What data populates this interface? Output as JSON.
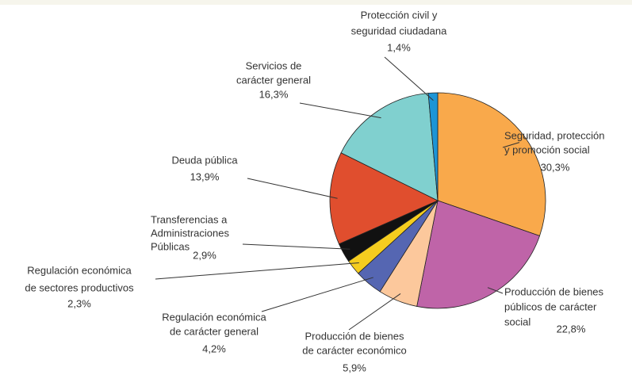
{
  "chart_data": {
    "type": "pie",
    "categories": [
      [
        "Seguridad, protección",
        "y promoción social"
      ],
      [
        "Producción de bienes",
        "públicos de carácter",
        "social"
      ],
      [
        "Producción de bienes",
        "de carácter económico"
      ],
      [
        "Regulación económica",
        "de carácter general"
      ],
      [
        "Regulación económica",
        "de sectores productivos"
      ],
      [
        "Transferencias a",
        "Administraciones",
        "Públicas"
      ],
      [
        "Deuda pública"
      ],
      [
        "Servicios de",
        "carácter general"
      ],
      [
        "Protección civil y",
        "seguridad ciudadana"
      ]
    ],
    "values": [
      30.3,
      22.8,
      5.9,
      4.2,
      2.3,
      2.9,
      13.9,
      16.3,
      1.4
    ],
    "value_labels": [
      "30,3%",
      "22,8%",
      "5,9%",
      "4,2%",
      "2,3%",
      "2,9%",
      "13,9%",
      "16,3%",
      "1,4%"
    ],
    "colors": [
      "#f9a94b",
      "#bf64a8",
      "#fcc89c",
      "#5566b2",
      "#f5cd1f",
      "#111111",
      "#e04e2e",
      "#80d0cf",
      "#1d95d6"
    ]
  }
}
